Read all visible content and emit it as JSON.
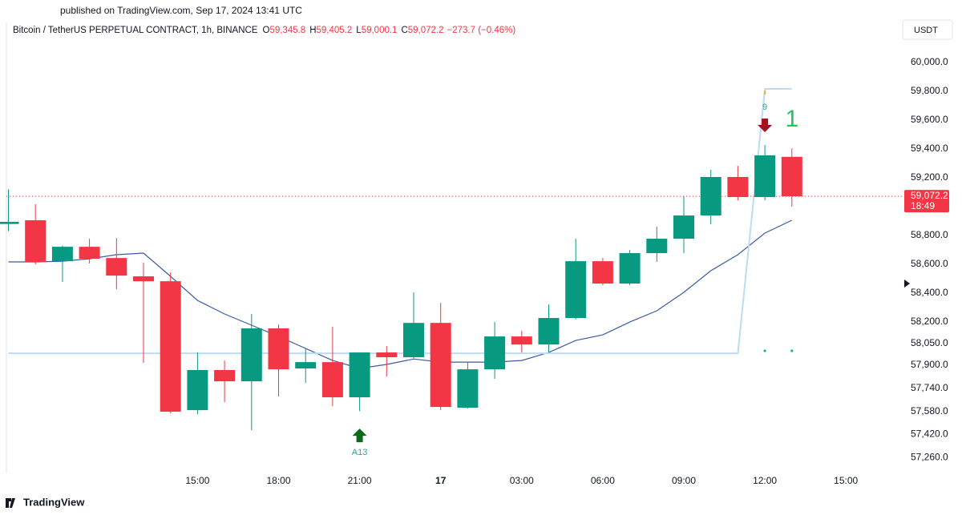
{
  "header": {
    "published": "published on TradingView.com, Sep 17, 2024 13:41 UTC"
  },
  "chart_data": {
    "type": "candlestick",
    "symbol": "Bitcoin / TetherUS PERPETUAL CONTRACT, 1h, BINANCE",
    "ohlc_legend": [
      {
        "key": "O",
        "value": "59,345.8"
      },
      {
        "key": "H",
        "value": "59,405.2"
      },
      {
        "key": "L",
        "value": "59,000.1"
      },
      {
        "key": "C",
        "value": "59,072.2"
      }
    ],
    "change": "−273.7 (−0.46%)",
    "currency": "USDT",
    "categories": [
      null,
      null,
      null,
      null,
      null,
      null,
      null,
      "15:00",
      null,
      null,
      "18:00",
      null,
      null,
      "21:00",
      null,
      null,
      "17",
      null,
      null,
      "03:00",
      null,
      null,
      "06:00",
      null,
      null,
      "09:00",
      null,
      null,
      "12:00",
      null,
      null,
      "15:00"
    ],
    "open": [
      58880,
      58906,
      58622,
      58722,
      58644,
      58517,
      58483,
      57589,
      57867,
      57789,
      58156,
      57878,
      57922,
      57678,
      57989,
      57956,
      58194,
      57606,
      57872,
      58100,
      58044,
      58228,
      58622,
      58467,
      58678,
      58778,
      58939,
      59206,
      59067,
      59345.8,
      null,
      null
    ],
    "high": [
      59120,
      59017,
      58730,
      58778,
      58783,
      58611,
      58544,
      57989,
      57933,
      58256,
      58183,
      58017,
      58167,
      57989,
      58033,
      58406,
      58333,
      57922,
      58200,
      58139,
      58322,
      58778,
      58644,
      58700,
      58861,
      59072,
      59256,
      59283,
      59428,
      59405.2,
      null,
      null
    ],
    "low": [
      58830,
      58600,
      58478,
      58606,
      58428,
      57917,
      57567,
      57561,
      57644,
      57450,
      57683,
      57778,
      57617,
      57583,
      57822,
      57950,
      57589,
      57600,
      57806,
      57989,
      57989,
      58220,
      58456,
      58456,
      58617,
      58678,
      58878,
      59044,
      59044,
      59000.1,
      null,
      null
    ],
    "close": [
      58895,
      58617,
      58722,
      58639,
      58522,
      58483,
      57578,
      57867,
      57789,
      58156,
      57872,
      57922,
      57678,
      57989,
      57956,
      58194,
      57611,
      57872,
      58100,
      58044,
      58228,
      58622,
      58467,
      58678,
      58778,
      58939,
      59206,
      59067,
      59356,
      59072.2,
      null,
      null
    ],
    "up_color": "#089981",
    "down_color": "#f23645",
    "overlays": [
      {
        "color": "#3b5ba5",
        "values": [
          58617,
          58617,
          58622,
          58639,
          58667,
          58678,
          58517,
          58350,
          58256,
          58178,
          58100,
          58017,
          57933,
          57878,
          57906,
          57944,
          57922,
          57922,
          57922,
          57933,
          57989,
          58072,
          58111,
          58200,
          58278,
          58406,
          58556,
          58667,
          58817,
          58906,
          null,
          null
        ]
      },
      {
        "color": "#bcdcf2",
        "values": [
          57983,
          57983,
          57983,
          57983,
          57983,
          57983,
          57983,
          57983,
          57983,
          57983,
          57983,
          57983,
          57983,
          57983,
          57983,
          57983,
          57983,
          57983,
          57983,
          57983,
          57983,
          57983,
          57983,
          57983,
          57983,
          57983,
          57983,
          57983,
          59817,
          59817,
          null,
          null
        ]
      }
    ],
    "ylim": [
      57156,
      60267
    ],
    "yticks": [
      {
        "value": 60000,
        "label": "60,000.0"
      },
      {
        "value": 59800,
        "label": "59,800.0"
      },
      {
        "value": 59600,
        "label": "59,600.0"
      },
      {
        "value": 59400,
        "label": "59,400.0"
      },
      {
        "value": 59200,
        "label": "59,200.0"
      },
      {
        "value": 58800,
        "label": "58,800.0"
      },
      {
        "value": 58600,
        "label": "58,600.0"
      },
      {
        "value": 58400,
        "label": "58,400.0"
      },
      {
        "value": 58200,
        "label": "58,200.0"
      },
      {
        "value": 58050,
        "label": "58,050.0"
      },
      {
        "value": 57900,
        "label": "57,900.0"
      },
      {
        "value": 57740,
        "label": "57,740.0"
      },
      {
        "value": 57580,
        "label": "57,580.0"
      },
      {
        "value": 57420,
        "label": "57,420.0"
      },
      {
        "value": 57260,
        "label": "57,260.0"
      }
    ],
    "last_price": {
      "value": 59072.2,
      "label": "59,072.2",
      "countdown": "18:49"
    },
    "annotations": [
      {
        "text": "A13",
        "index": 13,
        "kind": "buy"
      },
      {
        "text": "9",
        "index": 28,
        "kind": "sell"
      },
      {
        "text": "1",
        "index": 29,
        "kind": "count"
      }
    ]
  },
  "footer": {
    "brand": "TradingView"
  }
}
